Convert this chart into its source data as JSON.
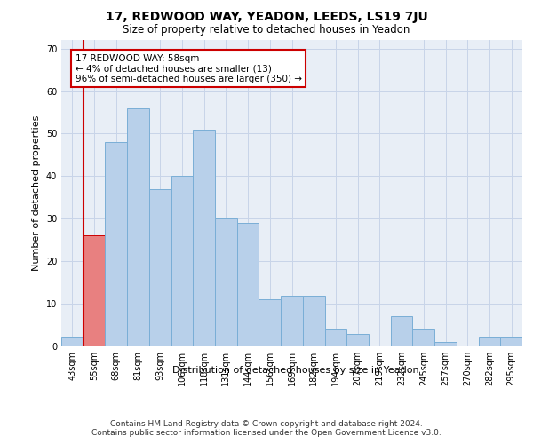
{
  "title": "17, REDWOOD WAY, YEADON, LEEDS, LS19 7JU",
  "subtitle": "Size of property relative to detached houses in Yeadon",
  "xlabel": "Distribution of detached houses by size in Yeadon",
  "ylabel": "Number of detached properties",
  "categories": [
    "43sqm",
    "55sqm",
    "68sqm",
    "81sqm",
    "93sqm",
    "106sqm",
    "118sqm",
    "131sqm",
    "144sqm",
    "156sqm",
    "169sqm",
    "182sqm",
    "194sqm",
    "207sqm",
    "219sqm",
    "232sqm",
    "245sqm",
    "257sqm",
    "270sqm",
    "282sqm",
    "295sqm"
  ],
  "values": [
    2,
    26,
    48,
    56,
    37,
    40,
    51,
    30,
    29,
    11,
    12,
    12,
    4,
    3,
    0,
    7,
    4,
    1,
    0,
    2,
    2
  ],
  "bar_color": "#b8d0ea",
  "bar_edge_color": "#7aaed6",
  "highlight_bar_index": 1,
  "highlight_bar_color": "#e88080",
  "highlight_bar_edge_color": "#cc0000",
  "vline_color": "#cc0000",
  "annotation_text": "17 REDWOOD WAY: 58sqm\n← 4% of detached houses are smaller (13)\n96% of semi-detached houses are larger (350) →",
  "annotation_box_color": "#ffffff",
  "annotation_box_edge_color": "#cc0000",
  "ylim": [
    0,
    72
  ],
  "yticks": [
    0,
    10,
    20,
    30,
    40,
    50,
    60,
    70
  ],
  "grid_color": "#c8d4e8",
  "bg_color": "#e8eef6",
  "footer_line1": "Contains HM Land Registry data © Crown copyright and database right 2024.",
  "footer_line2": "Contains public sector information licensed under the Open Government Licence v3.0.",
  "title_fontsize": 10,
  "subtitle_fontsize": 8.5,
  "xlabel_fontsize": 8,
  "ylabel_fontsize": 8,
  "tick_fontsize": 7,
  "annotation_fontsize": 7.5,
  "footer_fontsize": 6.5
}
